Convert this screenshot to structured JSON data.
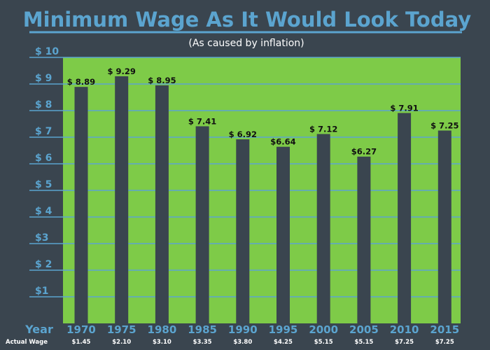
{
  "chart_data": {
    "type": "bar",
    "title": "Minimum Wage As It Would Look Today",
    "subtitle": "(As caused by inflation)",
    "xlabel": "Year",
    "ylabel": "",
    "categories": [
      "1970",
      "1975",
      "1980",
      "1985",
      "1990",
      "1995",
      "2000",
      "2005",
      "2010",
      "2015"
    ],
    "values": [
      8.89,
      9.29,
      8.95,
      7.41,
      6.92,
      6.64,
      7.12,
      6.27,
      7.91,
      7.25
    ],
    "data_labels": [
      "$ 8.89",
      "$ 9.29",
      "$ 8.95",
      "$ 7.41",
      "$ 6.92",
      "$6.64",
      "$ 7.12",
      "$6.27",
      "$ 7.91",
      "$ 7.25"
    ],
    "ylim": [
      0,
      10
    ],
    "yticks": [
      1,
      2,
      3,
      4,
      5,
      6,
      7,
      8,
      9,
      10
    ],
    "ytick_labels": [
      "$1",
      "$ 2",
      "$3",
      "$ 4",
      "$ 5",
      "$ 6",
      "$ 7",
      "$ 8",
      "$ 9",
      "$ 10"
    ],
    "actual_wage_label": "Actual Wage",
    "actual_wages": [
      "$1.45",
      "$2.10",
      "$3.10",
      "$3.35",
      "$3.80",
      "$4.25",
      "$5.15",
      "$5.15",
      "$7.25",
      "$7.25"
    ],
    "grid": true,
    "legend": "none",
    "colors": {
      "background": "#3a454f",
      "plot_area": "#7ecb48",
      "bar": "#3a454f",
      "accent": "#5ba4cf",
      "data_label": "#111111",
      "actual_wage_text": "#ffffff"
    }
  }
}
